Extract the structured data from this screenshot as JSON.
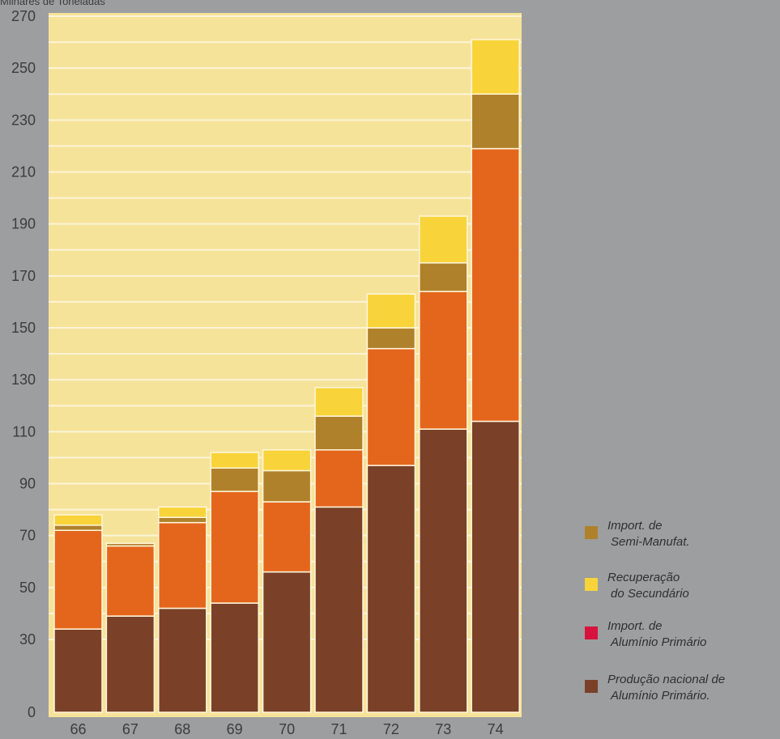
{
  "chart_data": {
    "type": "bar",
    "stacked": true,
    "ylabel": "Milhares de Toneladas",
    "ylim": [
      0,
      270
    ],
    "yticks": [
      0,
      30,
      50,
      70,
      90,
      110,
      130,
      150,
      170,
      190,
      210,
      230,
      250,
      270
    ],
    "categories": [
      "66",
      "67",
      "68",
      "69",
      "70",
      "71",
      "72",
      "73",
      "74"
    ],
    "series": [
      {
        "name": "Produção nacional de Alumínio Primário",
        "values": [
          34,
          39,
          42,
          44,
          56,
          81,
          97,
          111,
          114
        ]
      },
      {
        "name": "Import. de Alumínio Primário",
        "values": [
          38,
          27,
          33,
          43,
          27,
          22,
          45,
          53,
          105
        ]
      },
      {
        "name": "Import. de Semi-Manufat.",
        "values": [
          2,
          1,
          2,
          9,
          12,
          13,
          8,
          11,
          21
        ]
      },
      {
        "name": "Recuperação do Secundário",
        "values": [
          4,
          0,
          4,
          6,
          8,
          11,
          13,
          18,
          21
        ]
      }
    ],
    "legend_position": "right",
    "grid": true
  },
  "colors": {
    "background": "#9d9e9f",
    "plot_background": "#f6e39a",
    "gridline": "#fbf4d8",
    "producao": "#7a4028",
    "import_primario": "#e4661c",
    "semi_manufat": "#b0812b",
    "recuperacao": "#f8d43a",
    "legend_import_primario": "#d8123f",
    "axis_text": "#3b3c3e"
  },
  "legend": [
    {
      "key": "semi",
      "line1": "Import. de",
      "line2": "Semi-Manufat.",
      "color": "#b0812b",
      "icon": "square-swatch"
    },
    {
      "key": "rec",
      "line1": "Recuperação",
      "line2": "do Secundário",
      "color": "#f8d43a",
      "icon": "square-swatch"
    },
    {
      "key": "imp",
      "line1": "Import. de",
      "line2": "Alumínio Primário",
      "color": "#d8123f",
      "icon": "square-swatch"
    },
    {
      "key": "prod",
      "line1": "Produção nacional de",
      "line2": "Alumínio Primário.",
      "color": "#7a4028",
      "icon": "square-swatch"
    }
  ]
}
